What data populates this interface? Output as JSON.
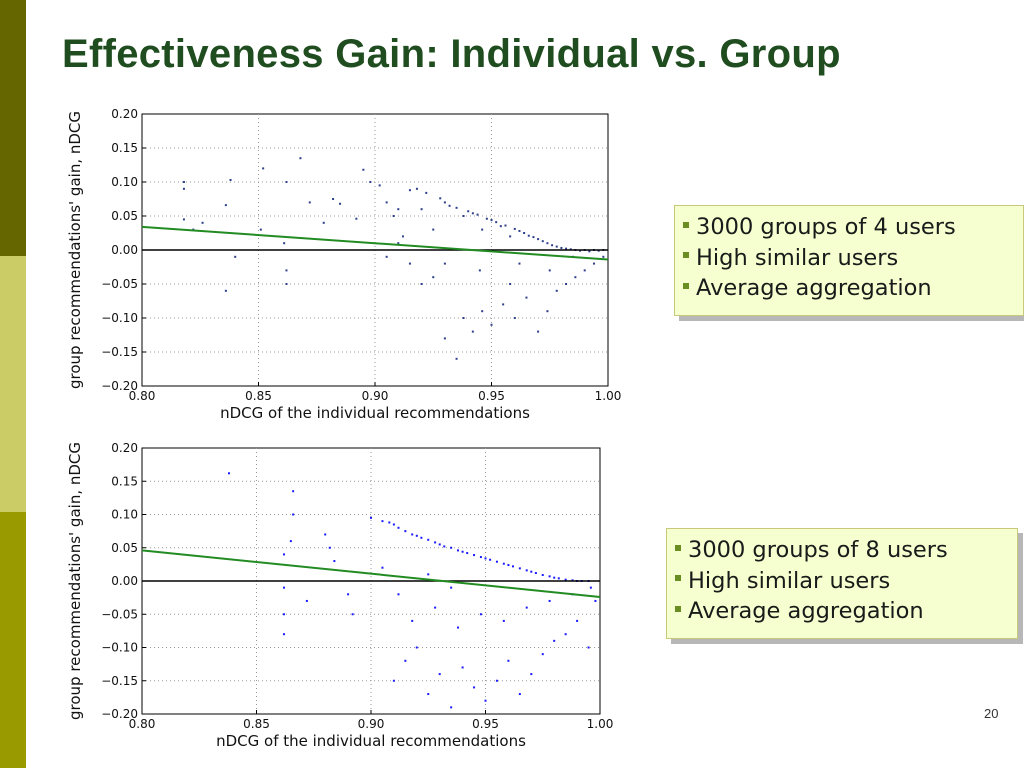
{
  "slide": {
    "title": "Effectiveness Gain: Individual vs. Group",
    "page_number": "20"
  },
  "colors": {
    "sidebar_top": "#666600",
    "sidebar_middle": "#cccc66",
    "sidebar_bottom": "#999900",
    "title": "#1f4d1f",
    "box_fill": "#f5ffcf",
    "bullet": "#6b8e23",
    "trend_line": "#228b22",
    "zero_line": "#000000",
    "points_plot1": "#2d3f8c",
    "points_plot2": "#1a1aff"
  },
  "boxes": [
    {
      "items": [
        "3000 groups of 4 users",
        "High similar users",
        "Average aggregation"
      ]
    },
    {
      "items": [
        "3000 groups of 8 users",
        "High similar users",
        "Average aggregation"
      ]
    }
  ],
  "chart_data": [
    {
      "type": "scatter",
      "xlabel": "nDCG of the individual recommendations",
      "ylabel": "group recommendations' gain, nDCG",
      "xlim": [
        0.8,
        1.0
      ],
      "ylim": [
        -0.2,
        0.2
      ],
      "xticks": [
        "0.80",
        "0.85",
        "0.90",
        "0.95",
        "1.00"
      ],
      "yticks": [
        "−0.20",
        "−0.15",
        "−0.10",
        "−0.05",
        "0.00",
        "0.05",
        "0.10",
        "0.15",
        "0.20"
      ],
      "grid": true,
      "points": [
        [
          0.818,
          0.1
        ],
        [
          0.818,
          0.09
        ],
        [
          0.818,
          0.045
        ],
        [
          0.822,
          0.03
        ],
        [
          0.826,
          0.04
        ],
        [
          0.836,
          0.066
        ],
        [
          0.838,
          0.103
        ],
        [
          0.84,
          -0.01
        ],
        [
          0.836,
          -0.06
        ],
        [
          0.852,
          0.12
        ],
        [
          0.851,
          0.03
        ],
        [
          0.861,
          0.01
        ],
        [
          0.862,
          -0.05
        ],
        [
          0.862,
          -0.03
        ],
        [
          0.868,
          0.135
        ],
        [
          0.862,
          0.1
        ],
        [
          0.872,
          0.07
        ],
        [
          0.878,
          0.04
        ],
        [
          0.882,
          0.075
        ],
        [
          0.885,
          0.068
        ],
        [
          0.892,
          0.046
        ],
        [
          0.895,
          0.118
        ],
        [
          0.898,
          0.1
        ],
        [
          0.902,
          0.095
        ],
        [
          0.905,
          0.07
        ],
        [
          0.908,
          0.05
        ],
        [
          0.91,
          0.06
        ],
        [
          0.912,
          0.02
        ],
        [
          0.915,
          0.088
        ],
        [
          0.918,
          0.09
        ],
        [
          0.92,
          0.06
        ],
        [
          0.922,
          0.084
        ],
        [
          0.925,
          0.03
        ],
        [
          0.928,
          0.076
        ],
        [
          0.93,
          0.07
        ],
        [
          0.932,
          0.065
        ],
        [
          0.935,
          0.062
        ],
        [
          0.938,
          0.05
        ],
        [
          0.94,
          0.057
        ],
        [
          0.942,
          0.054
        ],
        [
          0.944,
          0.052
        ],
        [
          0.946,
          0.03
        ],
        [
          0.948,
          0.046
        ],
        [
          0.95,
          0.044
        ],
        [
          0.952,
          0.041
        ],
        [
          0.954,
          0.035
        ],
        [
          0.956,
          0.036
        ],
        [
          0.958,
          0.02
        ],
        [
          0.96,
          0.031
        ],
        [
          0.962,
          0.028
        ],
        [
          0.964,
          0.025
        ],
        [
          0.966,
          0.021
        ],
        [
          0.968,
          0.019
        ],
        [
          0.97,
          0.016
        ],
        [
          0.972,
          0.013
        ],
        [
          0.974,
          0.01
        ],
        [
          0.976,
          0.007
        ],
        [
          0.978,
          0.005
        ],
        [
          0.98,
          0.003
        ],
        [
          0.982,
          0.002
        ],
        [
          0.984,
          0.001
        ],
        [
          0.986,
          0.0
        ],
        [
          0.988,
          -0.001
        ],
        [
          0.99,
          0.0
        ],
        [
          0.992,
          -0.002
        ],
        [
          0.994,
          0.0
        ],
        [
          0.996,
          -0.001
        ],
        [
          0.998,
          0.0
        ],
        [
          0.93,
          -0.13
        ],
        [
          0.935,
          -0.16
        ],
        [
          0.938,
          -0.1
        ],
        [
          0.942,
          -0.12
        ],
        [
          0.946,
          -0.09
        ],
        [
          0.95,
          -0.11
        ],
        [
          0.955,
          -0.08
        ],
        [
          0.96,
          -0.1
        ],
        [
          0.965,
          -0.07
        ],
        [
          0.97,
          -0.12
        ],
        [
          0.974,
          -0.09
        ],
        [
          0.978,
          -0.06
        ],
        [
          0.982,
          -0.05
        ],
        [
          0.986,
          -0.04
        ],
        [
          0.99,
          -0.03
        ],
        [
          0.994,
          -0.02
        ],
        [
          0.998,
          -0.01
        ],
        [
          0.925,
          -0.04
        ],
        [
          0.93,
          -0.02
        ],
        [
          0.945,
          -0.03
        ],
        [
          0.958,
          -0.05
        ],
        [
          0.962,
          -0.02
        ],
        [
          0.975,
          -0.03
        ],
        [
          0.985,
          -0.01
        ],
        [
          0.905,
          -0.01
        ],
        [
          0.91,
          0.01
        ],
        [
          0.915,
          -0.02
        ],
        [
          0.92,
          -0.05
        ]
      ],
      "trend_line": {
        "x": [
          0.8,
          1.0
        ],
        "y": [
          0.034,
          -0.014
        ]
      }
    },
    {
      "type": "scatter",
      "xlabel": "nDCG of the individual recommendations",
      "ylabel": "group recommendations' gain, nDCG",
      "xlim": [
        0.8,
        1.0
      ],
      "ylim": [
        -0.2,
        0.2
      ],
      "xticks": [
        "0.80",
        "0.85",
        "0.90",
        "0.95",
        "1.00"
      ],
      "yticks": [
        "−0.20",
        "−0.15",
        "−0.10",
        "−0.05",
        "0.00",
        "0.05",
        "0.10",
        "0.15",
        "0.20"
      ],
      "grid": true,
      "points": [
        [
          0.838,
          0.162
        ],
        [
          0.866,
          0.135
        ],
        [
          0.866,
          0.1
        ],
        [
          0.865,
          0.06
        ],
        [
          0.862,
          0.04
        ],
        [
          0.862,
          -0.01
        ],
        [
          0.862,
          -0.05
        ],
        [
          0.862,
          -0.08
        ],
        [
          0.872,
          -0.03
        ],
        [
          0.88,
          0.07
        ],
        [
          0.882,
          0.05
        ],
        [
          0.884,
          0.03
        ],
        [
          0.89,
          -0.02
        ],
        [
          0.892,
          -0.05
        ],
        [
          0.9,
          0.095
        ],
        [
          0.905,
          0.09
        ],
        [
          0.908,
          0.088
        ],
        [
          0.91,
          0.085
        ],
        [
          0.912,
          0.08
        ],
        [
          0.915,
          0.075
        ],
        [
          0.918,
          0.07
        ],
        [
          0.92,
          0.068
        ],
        [
          0.922,
          0.065
        ],
        [
          0.925,
          0.062
        ],
        [
          0.928,
          0.058
        ],
        [
          0.93,
          0.055
        ],
        [
          0.932,
          0.052
        ],
        [
          0.935,
          0.05
        ],
        [
          0.938,
          0.046
        ],
        [
          0.94,
          0.044
        ],
        [
          0.942,
          0.042
        ],
        [
          0.945,
          0.039
        ],
        [
          0.948,
          0.036
        ],
        [
          0.95,
          0.034
        ],
        [
          0.952,
          0.032
        ],
        [
          0.955,
          0.029
        ],
        [
          0.958,
          0.026
        ],
        [
          0.96,
          0.024
        ],
        [
          0.962,
          0.022
        ],
        [
          0.965,
          0.019
        ],
        [
          0.968,
          0.016
        ],
        [
          0.97,
          0.014
        ],
        [
          0.972,
          0.012
        ],
        [
          0.975,
          0.009
        ],
        [
          0.978,
          0.007
        ],
        [
          0.98,
          0.005
        ],
        [
          0.982,
          0.004
        ],
        [
          0.985,
          0.002
        ],
        [
          0.988,
          0.001
        ],
        [
          0.99,
          0.0
        ],
        [
          0.992,
          0.0
        ],
        [
          0.995,
          0.0
        ],
        [
          0.91,
          -0.15
        ],
        [
          0.915,
          -0.12
        ],
        [
          0.92,
          -0.1
        ],
        [
          0.925,
          -0.17
        ],
        [
          0.93,
          -0.14
        ],
        [
          0.935,
          -0.19
        ],
        [
          0.94,
          -0.13
        ],
        [
          0.945,
          -0.16
        ],
        [
          0.95,
          -0.18
        ],
        [
          0.955,
          -0.15
        ],
        [
          0.96,
          -0.12
        ],
        [
          0.965,
          -0.17
        ],
        [
          0.97,
          -0.14
        ],
        [
          0.975,
          -0.11
        ],
        [
          0.98,
          -0.09
        ],
        [
          0.985,
          -0.08
        ],
        [
          0.99,
          -0.06
        ],
        [
          0.995,
          -0.1
        ],
        [
          0.998,
          -0.03
        ],
        [
          0.918,
          -0.06
        ],
        [
          0.928,
          -0.04
        ],
        [
          0.938,
          -0.07
        ],
        [
          0.948,
          -0.05
        ],
        [
          0.958,
          -0.06
        ],
        [
          0.968,
          -0.04
        ],
        [
          0.978,
          -0.03
        ],
        [
          0.988,
          -0.02
        ],
        [
          0.996,
          -0.01
        ],
        [
          0.905,
          0.02
        ],
        [
          0.912,
          -0.02
        ],
        [
          0.925,
          0.01
        ],
        [
          0.935,
          -0.01
        ]
      ],
      "trend_line": {
        "x": [
          0.8,
          1.0
        ],
        "y": [
          0.046,
          -0.024
        ]
      }
    }
  ]
}
